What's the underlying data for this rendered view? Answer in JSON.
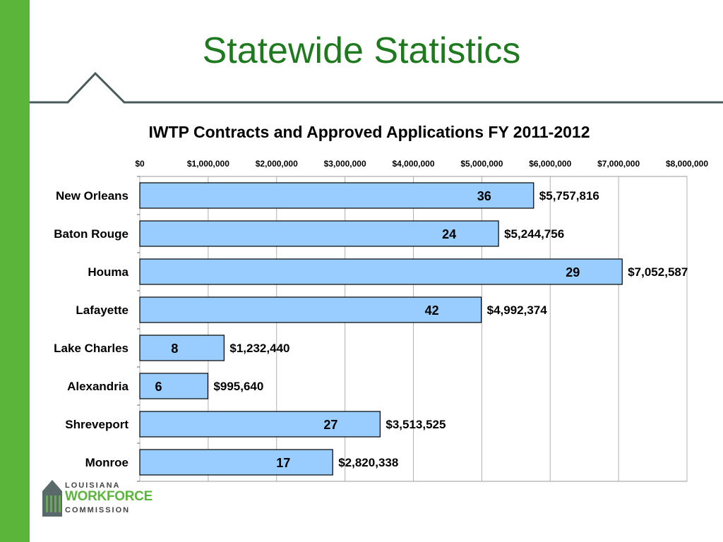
{
  "slide": {
    "title": "Statewide Statistics",
    "accent_color": "#5cb53b",
    "title_color": "#1f7a1f"
  },
  "logo": {
    "line1": "LOUISIANA",
    "line2": "WORKFORCE",
    "line3": "COMMISSION",
    "icon": "building-logo-icon"
  },
  "chart_data": {
    "type": "bar",
    "orientation": "horizontal",
    "title": "IWTP Contracts and Approved Applications FY 2011-2012",
    "categories": [
      "New Orleans",
      "Baton Rouge",
      "Houma",
      "Lafayette",
      "Lake Charles",
      "Alexandria",
      "Shreveport",
      "Monroe"
    ],
    "values": [
      5757816,
      5244756,
      7052587,
      4992374,
      1232440,
      995640,
      3513525,
      2820338
    ],
    "value_labels": [
      "$5,757,816",
      "$5,244,756",
      "$7,052,587",
      "$4,992,374",
      "$1,232,440",
      "$995,640",
      "$3,513,525",
      "$2,820,338"
    ],
    "count_labels": [
      "36",
      "24",
      "29",
      "42",
      "8",
      "6",
      "27",
      "17"
    ],
    "xlim": [
      0,
      8000000
    ],
    "x_ticks": [
      "$0",
      "$1,000,000",
      "$2,000,000",
      "$3,000,000",
      "$4,000,000",
      "$5,000,000",
      "$6,000,000",
      "$7,000,000",
      "$8,000,000"
    ],
    "x_axis_position": "top",
    "grid": true,
    "bar_color": "#99ccff",
    "legend": "none"
  }
}
